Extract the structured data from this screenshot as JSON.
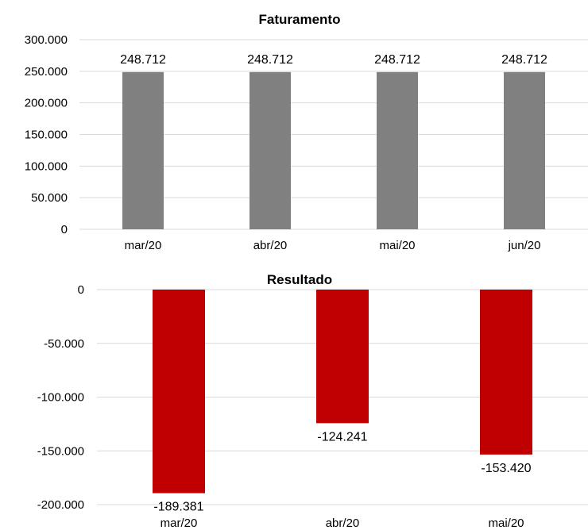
{
  "chart_data": [
    {
      "type": "bar",
      "title": "Faturamento",
      "categories": [
        "mar/20",
        "abr/20",
        "mai/20",
        "jun/20"
      ],
      "values": [
        248712,
        248712,
        248712,
        248712
      ],
      "value_labels": [
        "248.712",
        "248.712",
        "248.712",
        "248.712"
      ],
      "ylim": [
        0,
        300000
      ],
      "yticks": [
        0,
        50000,
        100000,
        150000,
        200000,
        250000,
        300000
      ],
      "ytick_labels": [
        "0",
        "50.000",
        "100.000",
        "150.000",
        "200.000",
        "250.000",
        "300.000"
      ],
      "grid": true,
      "bar_color": "#808080"
    },
    {
      "type": "bar",
      "title": "Resultado",
      "categories": [
        "mar/20",
        "abr/20",
        "mai/20"
      ],
      "values": [
        -189381,
        -124241,
        -153420
      ],
      "value_labels": [
        "-189.381",
        "-124.241",
        "-153.420"
      ],
      "ylim": [
        -200000,
        0
      ],
      "yticks": [
        0,
        -50000,
        -100000,
        -150000,
        -200000
      ],
      "ytick_labels": [
        "0",
        "-50.000",
        "-100.000",
        "-150.000",
        "-200.000"
      ],
      "grid": true,
      "bar_color": "#c00000"
    }
  ]
}
